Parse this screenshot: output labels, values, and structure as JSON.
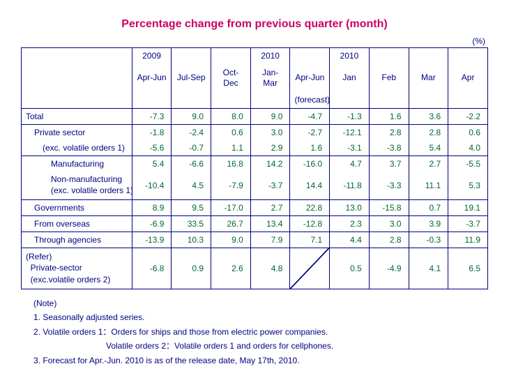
{
  "title": "Percentage change from previous quarter (month)",
  "unit": "(%)",
  "colors": {
    "title": "#cc0066",
    "text": "#000080",
    "value": "#006633",
    "border": "#000080",
    "background": "#ffffff"
  },
  "fonts": {
    "title_size_pt": 12,
    "body_size_pt": 9
  },
  "header": {
    "row1": [
      "2009",
      "",
      "",
      "2010",
      "",
      "2010",
      "",
      "",
      ""
    ],
    "row2": [
      "Apr-Jun",
      "Jul-Sep",
      "Oct-Dec",
      "Jan-Mar",
      "Apr-Jun",
      "Jan",
      "Feb",
      "Mar",
      "Apr"
    ],
    "row3": [
      "",
      "",
      "",
      "",
      "(forecast)",
      "",
      "",
      "",
      ""
    ]
  },
  "rows": [
    {
      "label": "Total",
      "indent": 0,
      "sep_after": true,
      "values": [
        "-7.3",
        "9.0",
        "8.0",
        "9.0",
        "-4.7",
        "-1.3",
        "1.6",
        "3.6",
        "-2.2"
      ]
    },
    {
      "label": "Private sector",
      "indent": 1,
      "sep_after": false,
      "values": [
        "-1.8",
        "-2.4",
        "0.6",
        "3.0",
        "-2.7",
        "-12.1",
        "2.8",
        "2.8",
        "0.6"
      ]
    },
    {
      "label": "(exc. volatile orders 1)",
      "indent": 2,
      "sep_after": true,
      "values": [
        "-5.6",
        "-0.7",
        "1.1",
        "2.9",
        "1.6",
        "-3.1",
        "-3.8",
        "5.4",
        "4.0"
      ]
    },
    {
      "label": "Manufacturing",
      "indent": 3,
      "sep_after": false,
      "values": [
        "5.4",
        "-6.6",
        "16.8",
        "14.2",
        "-16.0",
        "4.7",
        "3.7",
        "2.7",
        "-5.5"
      ]
    },
    {
      "label": "Non-manufacturing\n(exc. volatile orders 1)",
      "indent": 3,
      "sep_after": true,
      "values": [
        "-10.4",
        "4.5",
        "-7.9",
        "-3.7",
        "14.4",
        "-11.8",
        "-3.3",
        "11.1",
        "5.3"
      ]
    },
    {
      "label": "Governments",
      "indent": 1,
      "sep_after": true,
      "values": [
        "8.9",
        "9.5",
        "-17.0",
        "2.7",
        "22.8",
        "13.0",
        "-15.8",
        "0.7",
        "19.1"
      ]
    },
    {
      "label": "From overseas",
      "indent": 1,
      "sep_after": true,
      "values": [
        "-6.9",
        "33.5",
        "26.7",
        "13.4",
        "-12.8",
        "2.3",
        "3.0",
        "3.9",
        "-3.7"
      ]
    },
    {
      "label": "Through agencies",
      "indent": 1,
      "sep_after": true,
      "values": [
        "-13.9",
        "10.3",
        "9.0",
        "7.9",
        "7.1",
        "4.4",
        "2.8",
        "-0.3",
        "11.9"
      ]
    }
  ],
  "refer_row": {
    "label": "(Refer)\n  Private-sector\n  (exc.volatile orders 2)",
    "values": [
      "-6.8",
      "0.9",
      "2.6",
      "4.8",
      "SLASH",
      "0.5",
      "-4.9",
      "4.1",
      "6.5"
    ]
  },
  "notes": {
    "heading": "(Note)",
    "items": [
      "1. Seasonally adjusted series.",
      "2. Volatile orders 1：Orders for ships and those from electric power companies.",
      "   Volatile orders 2：Volatile orders 1 and orders for cellphones.",
      "3. Forecast for Apr.-Jun. 2010 is as of the release date, May 17th, 2010."
    ]
  }
}
